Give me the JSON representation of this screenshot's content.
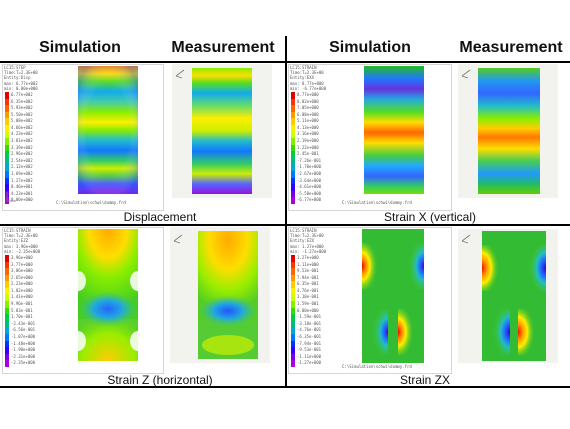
{
  "headers": {
    "sim_left": "Simulation",
    "meas_left": "Measurement",
    "sim_right": "Simulation",
    "meas_right": "Measurement"
  },
  "captions": {
    "displacement": "Displacement",
    "strain_x": "Strain X (vertical)",
    "strain_z": "Strain Z (horizontal)",
    "strain_zx": "Strain ZX"
  },
  "colormap": [
    "#e00000",
    "#ff3300",
    "#ff6600",
    "#ff9900",
    "#ffcc00",
    "#ffee00",
    "#ccff00",
    "#88ee00",
    "#33dd00",
    "#00cc44",
    "#00bb88",
    "#00aacc",
    "#0077ff",
    "#0033ff",
    "#3300ff",
    "#7700ee",
    "#aa00dd"
  ],
  "panels": {
    "displacement": {
      "plot_header": [
        "LC15:STEP",
        "Time:T=2.3E+00",
        "Entity:Disp"
      ],
      "minmax": [
        "max: 6.77e+002",
        "min: 0.00e+000"
      ],
      "legend": [
        "6.77e+002",
        "6.35e+002",
        "5.93e+002",
        "5.50e+002",
        "5.08e+002",
        "4.66e+002",
        "4.23e+002",
        "3.81e+002",
        "3.39e+002",
        "2.96e+002",
        "2.54e+002",
        "2.12e+002",
        "1.69e+002",
        "1.27e+002",
        "8.46e+001",
        "4.23e+001",
        "0.00e+000"
      ],
      "path": "C:\\Simulation\\schwi\\dummy.frd"
    },
    "strain_x": {
      "plot_header": [
        "LC15:STRAIN",
        "Time:T=2.3E+00",
        "Entity:EXX"
      ],
      "minmax": [
        "max: 8.77e+000",
        "min: -6.77e+000"
      ],
      "legend": [
        "8.77e+000",
        "8.02e+000",
        "7.05e+000",
        "6.08e+000",
        "5.11e+000",
        "4.13e+000",
        "3.16e+000",
        "2.19e+000",
        "1.22e+000",
        "2.45e-001",
        "-7.26e-001",
        "-1.70e+000",
        "-2.67e+000",
        "-3.64e+000",
        "-4.61e+000",
        "-5.58e+000",
        "-6.77e+000"
      ],
      "path": "C:\\Simulation\\schwi\\dummy.frd"
    },
    "strain_z": {
      "plot_header": [
        "LC15:STRAIN",
        "Time:T=2.3E+00",
        "Entity:EZZ"
      ],
      "minmax": [
        "max: 3.96e+000",
        "min: -2.35e+000"
      ],
      "legend": [
        "3.96e+000",
        "3.77e+000",
        "3.06e+000",
        "2.65e+000",
        "2.23e+000",
        "1.82e+000",
        "1.41e+000",
        "9.96e-001",
        "5.83e-001",
        "1.70e-001",
        "-2.43e-001",
        "-6.56e-001",
        "-1.07e+000",
        "-1.48e+000",
        "-1.90e+000",
        "-2.31e+000",
        "-2.35e+000"
      ],
      "path": "C:\\Simulation\\schwi\\dummy.frd"
    },
    "strain_zx": {
      "plot_header": [
        "LC15:STRAIN",
        "Time:T=2.3E+00",
        "Entity:EZX"
      ],
      "minmax": [
        "max: 1.27e+000",
        "min: -1.27e+000"
      ],
      "legend": [
        "1.27e+000",
        "1.11e+000",
        "9.53e-001",
        "7.94e-001",
        "6.35e-001",
        "4.76e-001",
        "3.18e-001",
        "1.59e-001",
        "0.00e+000",
        "-1.59e-001",
        "-3.18e-001",
        "-4.76e-001",
        "-6.35e-001",
        "-7.94e-001",
        "-9.53e-001",
        "-1.11e+000",
        "-1.27e+000"
      ],
      "path": "C:\\Simulation\\schwi\\dummy.frd"
    }
  }
}
